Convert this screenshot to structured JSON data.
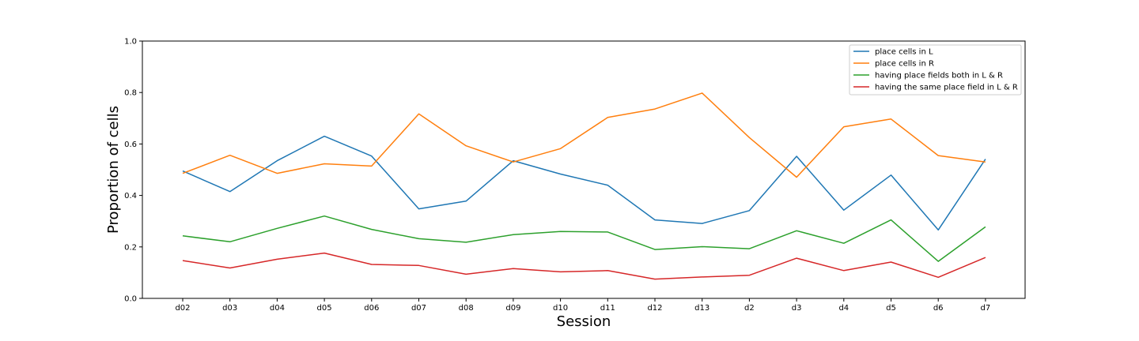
{
  "chart_data": {
    "type": "line",
    "xlabel": "Session",
    "ylabel": "Proportion of cells",
    "ylim": [
      0.0,
      1.0
    ],
    "yticks": [
      "0.0",
      "0.2",
      "0.4",
      "0.6",
      "0.8",
      "1.0"
    ],
    "grid": false,
    "legend_position": "top-right",
    "categories": [
      "d02",
      "d03",
      "d04",
      "d05",
      "d06",
      "d07",
      "d08",
      "d09",
      "d10",
      "d11",
      "d12",
      "d13",
      "d2",
      "d3",
      "d4",
      "d5",
      "d6",
      "d7"
    ],
    "series": [
      {
        "name": "place cells in L",
        "color": "#1f77b4",
        "values": [
          0.495,
          0.415,
          0.535,
          0.63,
          0.553,
          0.348,
          0.378,
          0.535,
          0.483,
          0.44,
          0.305,
          0.291,
          0.341,
          0.552,
          0.343,
          0.479,
          0.266,
          0.541
        ]
      },
      {
        "name": "place cells in R",
        "color": "#ff7f0e",
        "values": [
          0.486,
          0.556,
          0.486,
          0.523,
          0.514,
          0.717,
          0.593,
          0.53,
          0.582,
          0.703,
          0.736,
          0.798,
          0.625,
          0.471,
          0.667,
          0.697,
          0.555,
          0.53
        ]
      },
      {
        "name": "having place fields both in L & R",
        "color": "#2ca02c",
        "values": [
          0.243,
          0.22,
          0.272,
          0.32,
          0.268,
          0.232,
          0.218,
          0.248,
          0.26,
          0.258,
          0.19,
          0.201,
          0.193,
          0.263,
          0.214,
          0.305,
          0.144,
          0.278
        ]
      },
      {
        "name": "having the same place field in L & R",
        "color": "#d62728",
        "values": [
          0.147,
          0.118,
          0.152,
          0.176,
          0.132,
          0.128,
          0.094,
          0.116,
          0.103,
          0.108,
          0.075,
          0.083,
          0.09,
          0.156,
          0.108,
          0.141,
          0.082,
          0.159
        ]
      }
    ]
  }
}
